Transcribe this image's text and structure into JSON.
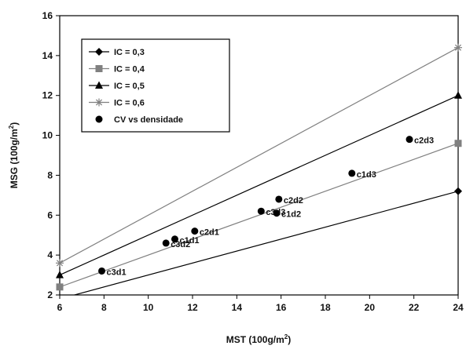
{
  "chart_data": {
    "type": "line",
    "xlabel": "MST (100g/m",
    "xlabel_sup": "2",
    "xlabel_end": ")",
    "ylabel": "MSG (100g/m",
    "ylabel_sup": "2",
    "ylabel_end": ")",
    "xlim": [
      6,
      24
    ],
    "ylim": [
      2,
      16
    ],
    "xticks": [
      "6",
      "8",
      "10",
      "12",
      "14",
      "16",
      "18",
      "20",
      "22",
      "24"
    ],
    "yticks": [
      "2",
      "4",
      "6",
      "8",
      "10",
      "12",
      "14",
      "16"
    ],
    "grid": false,
    "legend_position": "top-left",
    "series": [
      {
        "name": "IC = 0,3",
        "marker": "diamond",
        "color": "#000000",
        "x": [
          6,
          24
        ],
        "y": [
          1.8,
          7.2
        ]
      },
      {
        "name": "IC = 0,4",
        "marker": "square",
        "color": "#808080",
        "x": [
          6,
          24
        ],
        "y": [
          2.4,
          9.6
        ]
      },
      {
        "name": "IC = 0,5",
        "marker": "triangle",
        "color": "#000000",
        "x": [
          6,
          24
        ],
        "y": [
          3.0,
          12.0
        ]
      },
      {
        "name": "IC = 0,6",
        "marker": "star",
        "color": "#808080",
        "x": [
          6,
          24
        ],
        "y": [
          3.6,
          14.4
        ]
      }
    ],
    "scatter": {
      "name": "CV vs densidade",
      "marker": "circle",
      "color": "#000000",
      "points": [
        {
          "label": "c3d1",
          "x": 7.9,
          "y": 3.2
        },
        {
          "label": "c3d2",
          "x": 10.8,
          "y": 4.6
        },
        {
          "label": "c1d1",
          "x": 11.2,
          "y": 4.8
        },
        {
          "label": "c2d1",
          "x": 12.1,
          "y": 5.2
        },
        {
          "label": "c3d3",
          "x": 15.1,
          "y": 6.2
        },
        {
          "label": "c1d2",
          "x": 15.8,
          "y": 6.1
        },
        {
          "label": "c2d2",
          "x": 15.9,
          "y": 6.8
        },
        {
          "label": "c1d3",
          "x": 19.2,
          "y": 8.1
        },
        {
          "label": "c2d3",
          "x": 21.8,
          "y": 9.8
        }
      ]
    }
  }
}
